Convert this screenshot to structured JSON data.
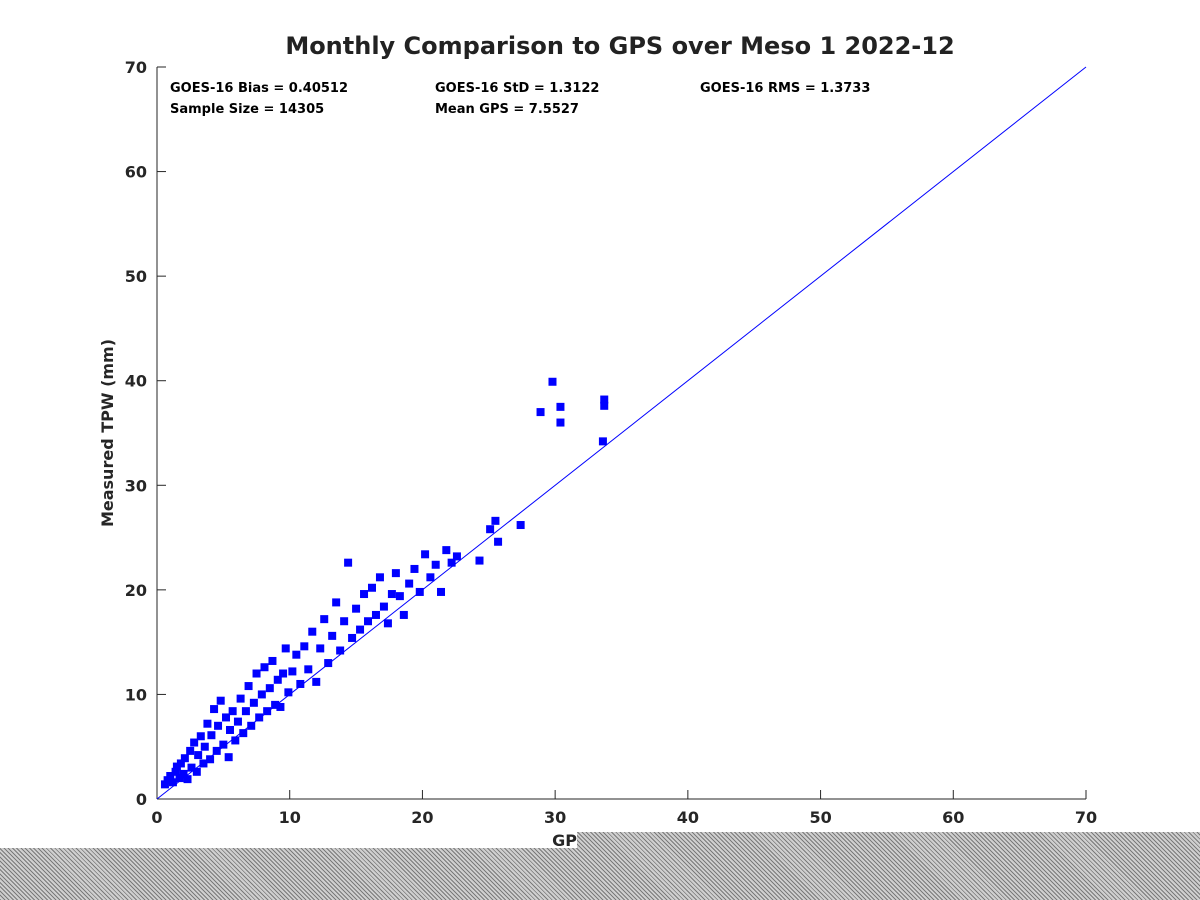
{
  "chart_data": {
    "type": "scatter",
    "title": "Monthly Comparison to GPS over Meso 1 2022-12",
    "xlabel": "GPS TPW (mm)",
    "ylabel": "Measured TPW (mm)",
    "xlim": [
      0,
      70
    ],
    "ylim": [
      0,
      70
    ],
    "xticks": [
      "0",
      "10",
      "20",
      "30",
      "40",
      "50",
      "60",
      "70"
    ],
    "yticks": [
      "0",
      "10",
      "20",
      "30",
      "40",
      "50",
      "60",
      "70"
    ],
    "grid": false,
    "marker_color": "#0000ff",
    "line_color": "#0000ff",
    "reference_line": {
      "x": [
        0,
        70
      ],
      "y": [
        0,
        70
      ]
    },
    "stats": {
      "bias": "GOES-16 Bias = 0.40512",
      "std": "GOES-16 StD = 1.3122",
      "rms": "GOES-16 RMS = 1.3733",
      "sample_size": "Sample Size = 14305",
      "mean_gps": "Mean GPS = 7.5527"
    },
    "series": [
      {
        "points": [
          [
            0.6,
            1.4
          ],
          [
            0.8,
            1.8
          ],
          [
            1.0,
            2.2
          ],
          [
            1.2,
            1.6
          ],
          [
            1.4,
            2.6
          ],
          [
            1.5,
            3.1
          ],
          [
            1.7,
            2.0
          ],
          [
            1.8,
            3.4
          ],
          [
            2.0,
            2.4
          ],
          [
            2.1,
            3.9
          ],
          [
            2.3,
            1.9
          ],
          [
            2.5,
            4.6
          ],
          [
            2.6,
            3.0
          ],
          [
            2.8,
            5.4
          ],
          [
            3.0,
            2.6
          ],
          [
            3.1,
            4.2
          ],
          [
            3.3,
            6.0
          ],
          [
            3.5,
            3.4
          ],
          [
            3.6,
            5.0
          ],
          [
            3.8,
            7.2
          ],
          [
            4.0,
            3.8
          ],
          [
            4.1,
            6.1
          ],
          [
            4.3,
            8.6
          ],
          [
            4.5,
            4.6
          ],
          [
            4.6,
            7.0
          ],
          [
            4.8,
            9.4
          ],
          [
            5.0,
            5.2
          ],
          [
            5.2,
            7.8
          ],
          [
            5.4,
            4.0
          ],
          [
            5.5,
            6.6
          ],
          [
            5.7,
            8.4
          ],
          [
            5.9,
            5.6
          ],
          [
            6.1,
            7.4
          ],
          [
            6.3,
            9.6
          ],
          [
            6.5,
            6.3
          ],
          [
            6.7,
            8.4
          ],
          [
            6.9,
            10.8
          ],
          [
            7.1,
            7.0
          ],
          [
            7.3,
            9.2
          ],
          [
            7.5,
            12.0
          ],
          [
            7.7,
            7.8
          ],
          [
            7.9,
            10.0
          ],
          [
            8.1,
            12.6
          ],
          [
            8.3,
            8.4
          ],
          [
            8.5,
            10.6
          ],
          [
            8.7,
            13.2
          ],
          [
            8.9,
            9.0
          ],
          [
            9.1,
            11.4
          ],
          [
            9.3,
            8.8
          ],
          [
            9.5,
            12.0
          ],
          [
            9.7,
            14.4
          ],
          [
            9.9,
            10.2
          ],
          [
            10.2,
            12.2
          ],
          [
            10.5,
            13.8
          ],
          [
            10.8,
            11.0
          ],
          [
            11.1,
            14.6
          ],
          [
            11.4,
            12.4
          ],
          [
            11.7,
            16.0
          ],
          [
            12.0,
            11.2
          ],
          [
            12.3,
            14.4
          ],
          [
            12.6,
            17.2
          ],
          [
            12.9,
            13.0
          ],
          [
            13.2,
            15.6
          ],
          [
            13.5,
            18.8
          ],
          [
            13.8,
            14.2
          ],
          [
            14.1,
            17.0
          ],
          [
            14.4,
            22.6
          ],
          [
            14.7,
            15.4
          ],
          [
            15.0,
            18.2
          ],
          [
            15.3,
            16.2
          ],
          [
            15.6,
            19.6
          ],
          [
            15.9,
            17.0
          ],
          [
            16.2,
            20.2
          ],
          [
            16.5,
            17.6
          ],
          [
            16.8,
            21.2
          ],
          [
            17.1,
            18.4
          ],
          [
            17.4,
            16.8
          ],
          [
            17.7,
            19.6
          ],
          [
            18.0,
            21.6
          ],
          [
            18.3,
            19.4
          ],
          [
            18.6,
            17.6
          ],
          [
            19.0,
            20.6
          ],
          [
            19.4,
            22.0
          ],
          [
            19.8,
            19.8
          ],
          [
            20.2,
            23.4
          ],
          [
            20.6,
            21.2
          ],
          [
            21.0,
            22.4
          ],
          [
            21.4,
            19.8
          ],
          [
            21.8,
            23.8
          ],
          [
            22.2,
            22.6
          ],
          [
            22.6,
            23.2
          ],
          [
            24.3,
            22.8
          ],
          [
            25.1,
            25.8
          ],
          [
            25.5,
            26.6
          ],
          [
            25.7,
            24.6
          ],
          [
            27.4,
            26.2
          ],
          [
            28.9,
            37.0
          ],
          [
            29.8,
            39.9
          ],
          [
            30.4,
            37.5
          ],
          [
            30.4,
            36.0
          ],
          [
            33.6,
            34.2
          ],
          [
            33.7,
            37.6
          ],
          [
            33.7,
            38.2
          ]
        ]
      }
    ]
  }
}
